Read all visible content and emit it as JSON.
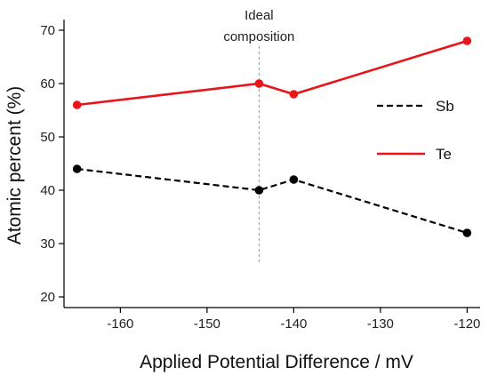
{
  "chart_data": {
    "type": "line",
    "title": "",
    "xlabel": "Applied Potential Difference / mV",
    "ylabel": "Atomic percent (%)",
    "xlim": [
      -166.5,
      -118.5
    ],
    "ylim": [
      18,
      72
    ],
    "xticks": [
      -160,
      -150,
      -140,
      -130,
      -120
    ],
    "yticks": [
      20,
      30,
      40,
      50,
      60,
      70
    ],
    "grid": false,
    "legend_position": "right",
    "annotation": {
      "line1": "Ideal",
      "line2": "composition",
      "x": -144,
      "color": "#5aa6d6"
    },
    "series": [
      {
        "name": "Sb",
        "color": "#000000",
        "dash": "dashed",
        "x": [
          -165,
          -144,
          -140,
          -120
        ],
        "y": [
          44,
          40,
          42,
          32
        ]
      },
      {
        "name": "Te",
        "color": "#e8151b",
        "dash": "solid",
        "x": [
          -165,
          -144,
          -140,
          -120
        ],
        "y": [
          56,
          60,
          58,
          68
        ]
      }
    ]
  }
}
